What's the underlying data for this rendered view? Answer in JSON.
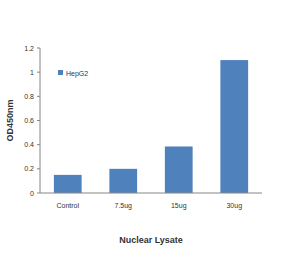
{
  "chart_data": {
    "type": "bar",
    "x_label": "Nuclear Lysate",
    "y_label": "OD450nm",
    "categories": [
      "Control",
      "7.5ug",
      "15ug",
      "30ug"
    ],
    "series": [
      {
        "name": "HepG2",
        "color": "#4f81bd",
        "values": [
          0.15,
          0.2,
          0.385,
          1.1
        ]
      }
    ],
    "ylim": [
      0,
      1.2
    ],
    "yticks": [
      0,
      0.2,
      0.4,
      0.6,
      0.8,
      1,
      1.2
    ],
    "grid": false,
    "legend": "upper left"
  }
}
